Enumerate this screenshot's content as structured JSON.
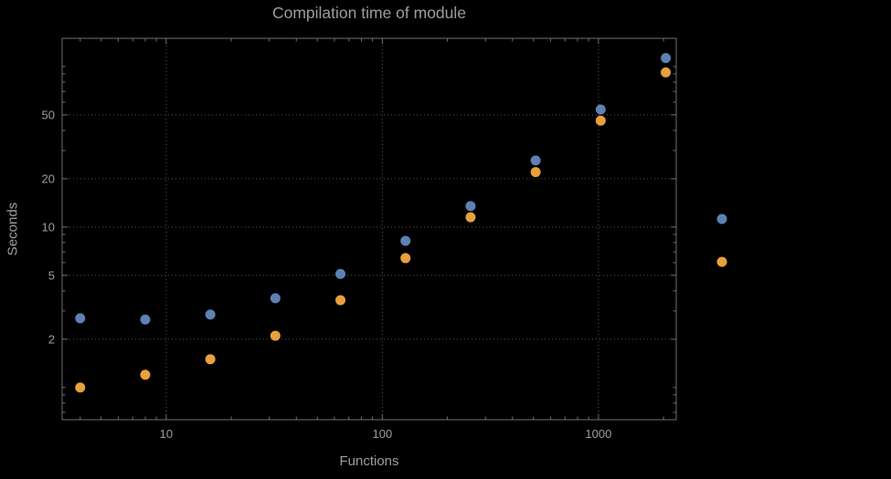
{
  "chart_data": {
    "type": "scatter",
    "title": "Compilation time of module",
    "xlabel": "Functions",
    "ylabel": "Seconds",
    "xscale": "log",
    "yscale": "log",
    "xlim": [
      3.3,
      2290
    ],
    "ylim": [
      0.63,
      150
    ],
    "x_ticks": [
      10,
      100,
      1000
    ],
    "y_ticks": [
      2,
      5,
      10,
      20,
      50
    ],
    "grid": "dotted",
    "colors": {
      "background": "#000000",
      "frame": "#6f6f6f",
      "gridline": "#555555",
      "text": "#9d9d9d",
      "series_blue": "#5e81b5",
      "series_orange": "#e8a13c"
    },
    "series": [
      {
        "name": "blue",
        "color": "#5e81b5",
        "points": [
          [
            4,
            2.7
          ],
          [
            8,
            2.65
          ],
          [
            16,
            2.85
          ],
          [
            32,
            3.6
          ],
          [
            64,
            5.1
          ],
          [
            128,
            8.2
          ],
          [
            256,
            13.5
          ],
          [
            512,
            26
          ],
          [
            1024,
            54
          ],
          [
            2048,
            113
          ]
        ]
      },
      {
        "name": "orange",
        "color": "#e8a13c",
        "points": [
          [
            4,
            1.0
          ],
          [
            8,
            1.2
          ],
          [
            16,
            1.5
          ],
          [
            32,
            2.1
          ],
          [
            64,
            3.5
          ],
          [
            128,
            6.4
          ],
          [
            256,
            11.5
          ],
          [
            512,
            22
          ],
          [
            1024,
            46
          ],
          [
            2048,
            92
          ]
        ]
      }
    ],
    "legend": {
      "position": "right-outside",
      "markers": [
        {
          "name": "legend-marker-blue",
          "color": "#5e81b5"
        },
        {
          "name": "legend-marker-orange",
          "color": "#e8a13c"
        }
      ]
    }
  }
}
